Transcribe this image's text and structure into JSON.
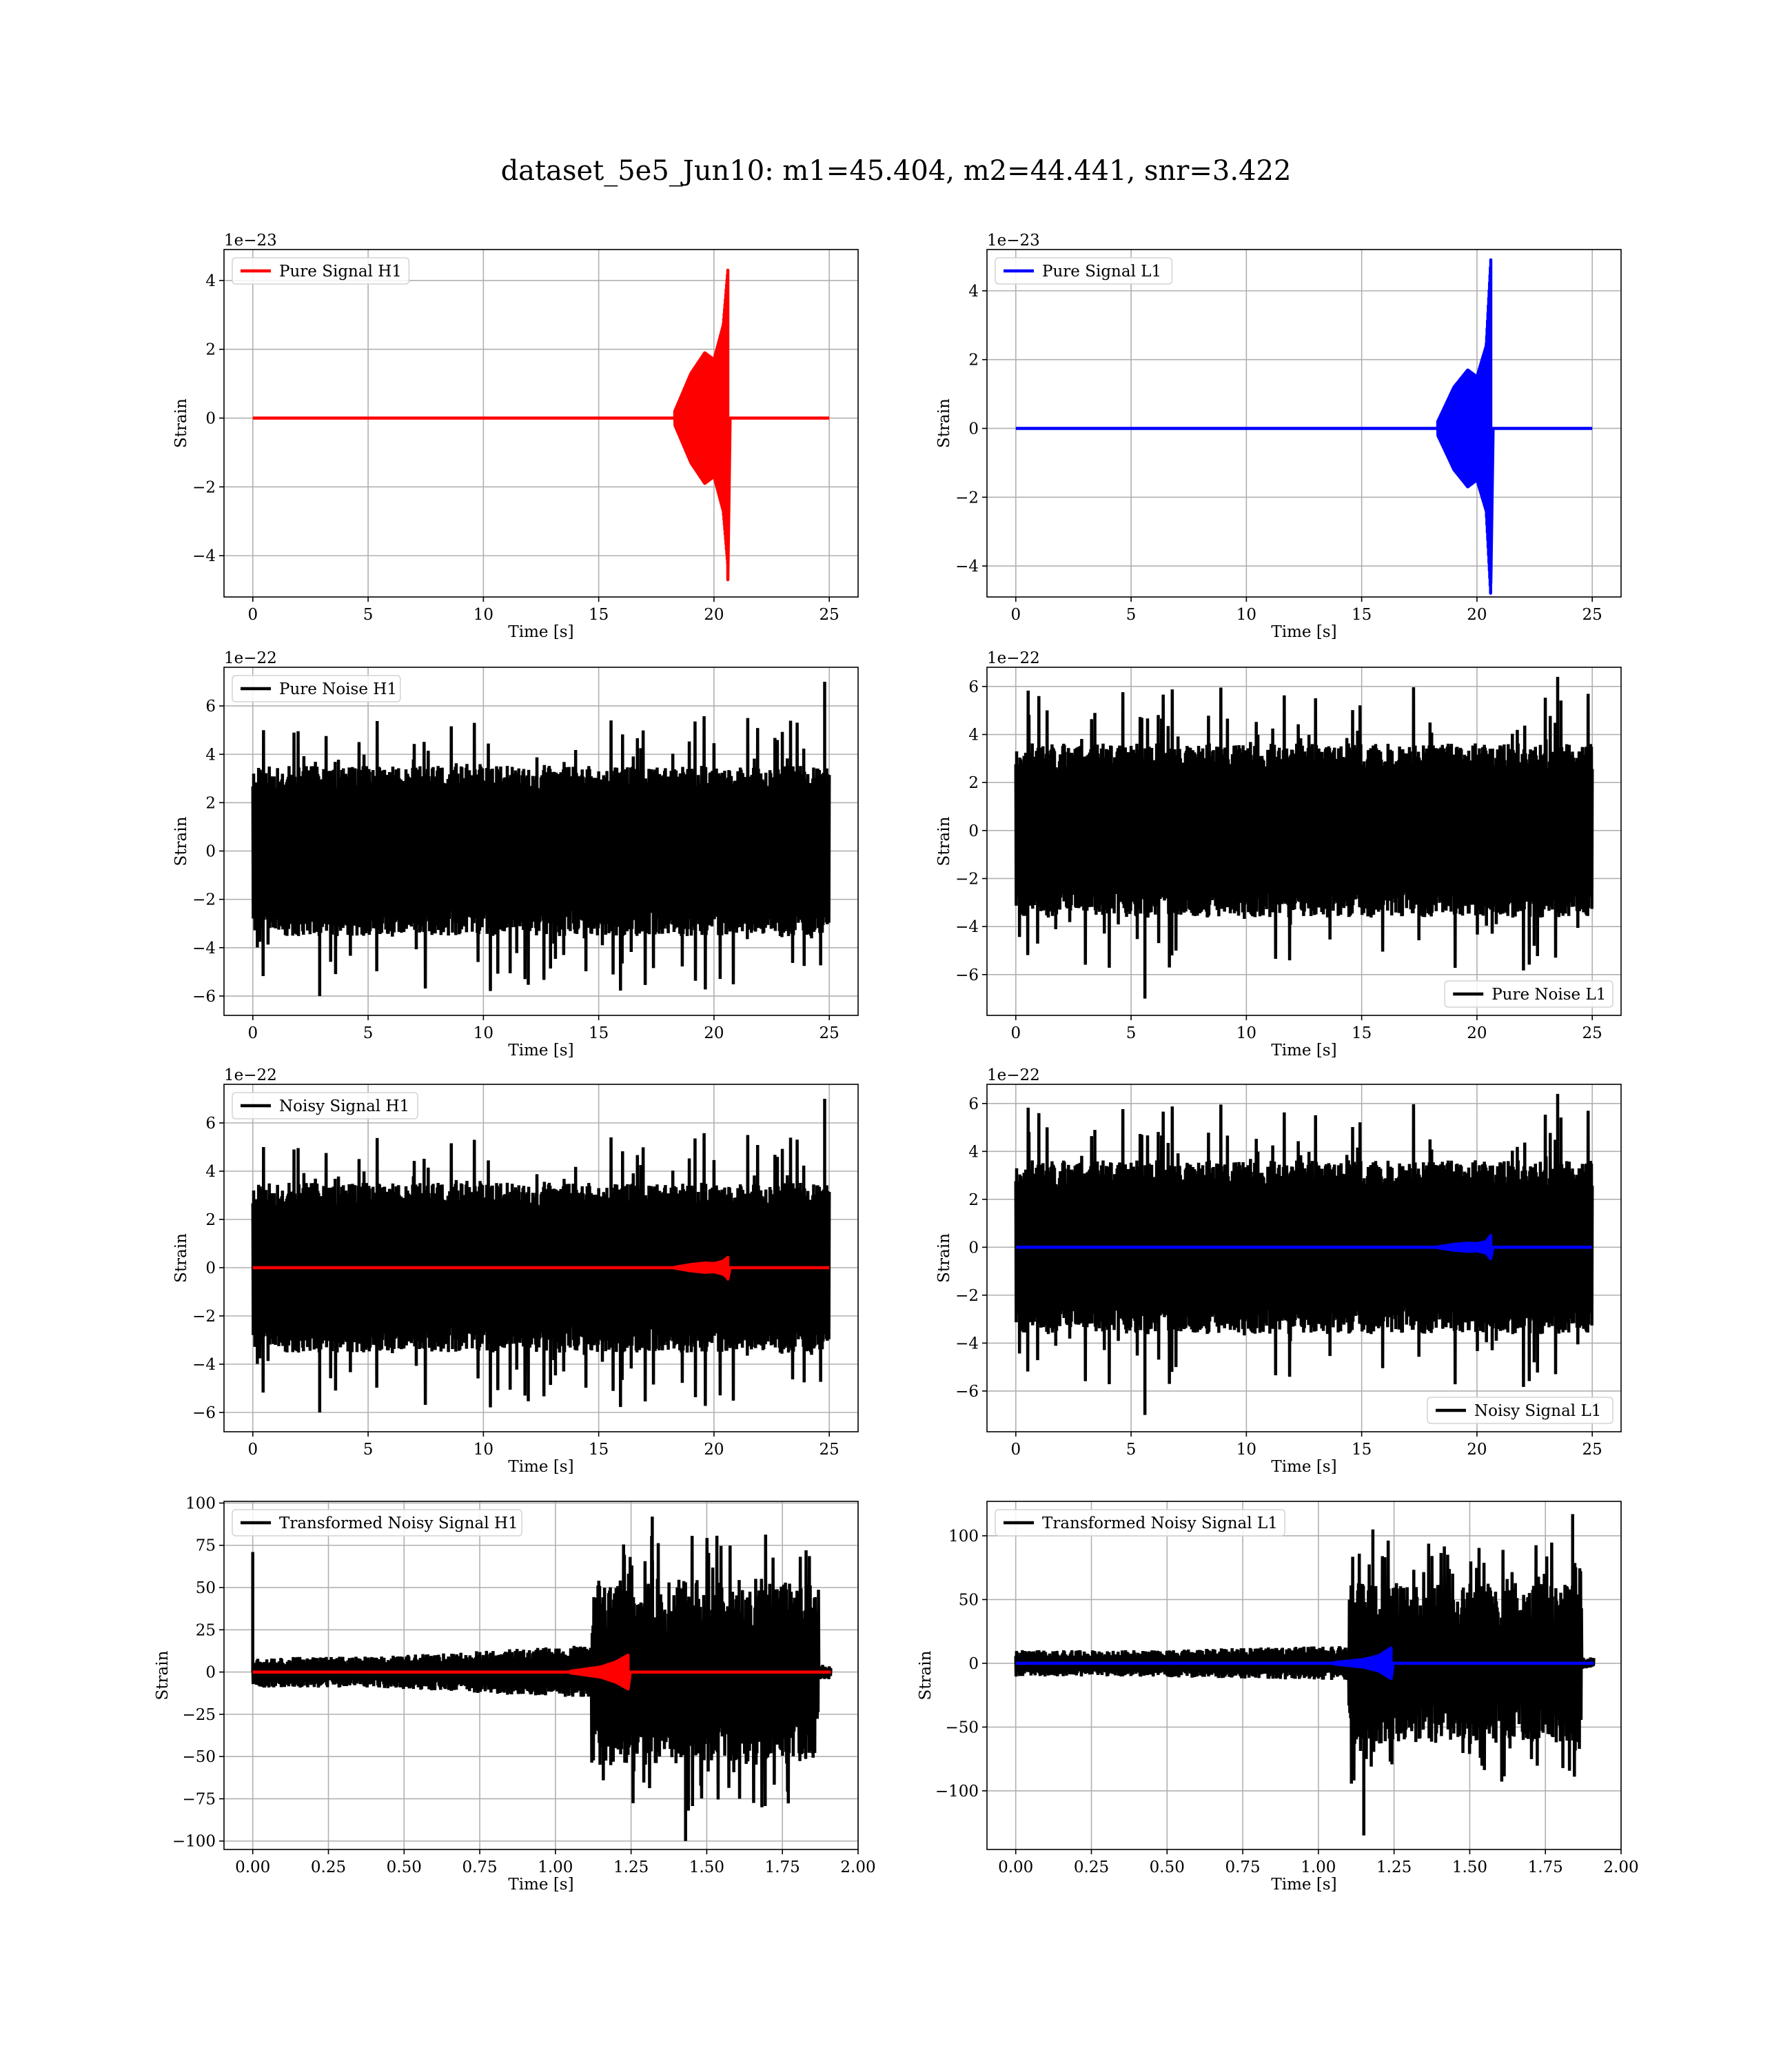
{
  "figure": {
    "title": "dataset_5e5_Jun10: m1=45.404, m2=44.441, snr=3.422"
  },
  "chart_data": [
    {
      "id": "pure-signal-h1",
      "type": "line",
      "xlabel": "Time [s]",
      "ylabel": "Strain",
      "offset_text": "1e−23",
      "xlim": [
        -1.25,
        26.25
      ],
      "ylim": [
        -5.2,
        4.9
      ],
      "xticks": [
        0,
        5,
        10,
        15,
        20,
        25
      ],
      "xtick_labels": [
        "0",
        "5",
        "10",
        "15",
        "20",
        "25"
      ],
      "yticks": [
        -4,
        -2,
        0,
        2,
        4
      ],
      "ytick_labels": [
        "−4",
        "−2",
        "0",
        "2",
        "4"
      ],
      "grid": true,
      "legend_position": "upper-left",
      "series": [
        {
          "name": "Pure Signal H1",
          "color": "#ff0000",
          "kind": "chirp",
          "x_start": 0,
          "x_end": 25,
          "merger": 20.6,
          "chirp_start": 18.3,
          "envelope": [
            [
              18.3,
              0.2
            ],
            [
              19.0,
              1.3
            ],
            [
              19.6,
              1.9
            ],
            [
              20.0,
              1.7
            ],
            [
              20.4,
              2.7
            ],
            [
              20.6,
              4.3
            ]
          ],
          "neg_peak": -4.7
        }
      ]
    },
    {
      "id": "pure-signal-l1",
      "type": "line",
      "xlabel": "Time [s]",
      "ylabel": "Strain",
      "offset_text": "1e−23",
      "xlim": [
        -1.25,
        26.25
      ],
      "ylim": [
        -4.9,
        5.2
      ],
      "xticks": [
        0,
        5,
        10,
        15,
        20,
        25
      ],
      "xtick_labels": [
        "0",
        "5",
        "10",
        "15",
        "20",
        "25"
      ],
      "yticks": [
        -4,
        -2,
        0,
        2,
        4
      ],
      "ytick_labels": [
        "−4",
        "−2",
        "0",
        "2",
        "4"
      ],
      "grid": true,
      "legend_position": "upper-left",
      "series": [
        {
          "name": "Pure Signal L1",
          "color": "#0000ff",
          "kind": "chirp",
          "x_start": 0,
          "x_end": 25,
          "merger": 20.6,
          "chirp_start": 18.3,
          "envelope": [
            [
              18.3,
              0.2
            ],
            [
              19.0,
              1.2
            ],
            [
              19.6,
              1.7
            ],
            [
              20.0,
              1.5
            ],
            [
              20.4,
              2.4
            ],
            [
              20.6,
              4.9
            ]
          ],
          "neg_peak": -4.5
        }
      ]
    },
    {
      "id": "pure-noise-h1",
      "type": "line",
      "xlabel": "Time [s]",
      "ylabel": "Strain",
      "offset_text": "1e−22",
      "xlim": [
        -1.25,
        26.25
      ],
      "ylim": [
        -6.8,
        7.6
      ],
      "xticks": [
        0,
        5,
        10,
        15,
        20,
        25
      ],
      "xtick_labels": [
        "0",
        "5",
        "10",
        "15",
        "20",
        "25"
      ],
      "yticks": [
        -6,
        -4,
        -2,
        0,
        2,
        4,
        6
      ],
      "ytick_labels": [
        "−6",
        "−4",
        "−2",
        "0",
        "2",
        "4",
        "6"
      ],
      "grid": true,
      "legend_position": "upper-left",
      "series": [
        {
          "name": "Pure Noise H1",
          "color": "#000000",
          "kind": "noise",
          "x_start": 0,
          "x_end": 25,
          "band": 3.2,
          "spike_max": 5.8,
          "max_point": [
            24.8,
            7.0
          ],
          "min_point": [
            2.9,
            -6.0
          ],
          "seed": 11
        }
      ]
    },
    {
      "id": "pure-noise-l1",
      "type": "line",
      "xlabel": "Time [s]",
      "ylabel": "Strain",
      "offset_text": "1e−22",
      "xlim": [
        -1.25,
        26.25
      ],
      "ylim": [
        -7.7,
        6.8
      ],
      "xticks": [
        0,
        5,
        10,
        15,
        20,
        25
      ],
      "xtick_labels": [
        "0",
        "5",
        "10",
        "15",
        "20",
        "25"
      ],
      "yticks": [
        -6,
        -4,
        -2,
        0,
        2,
        4,
        6
      ],
      "ytick_labels": [
        "−6",
        "−4",
        "−2",
        "0",
        "2",
        "4",
        "6"
      ],
      "grid": true,
      "legend_position": "lower-right",
      "series": [
        {
          "name": "Pure Noise L1",
          "color": "#000000",
          "kind": "noise",
          "x_start": 0,
          "x_end": 25,
          "band": 3.3,
          "spike_max": 6.0,
          "max_point": [
            23.5,
            6.4
          ],
          "min_point": [
            5.6,
            -7.0
          ],
          "seed": 23
        }
      ]
    },
    {
      "id": "noisy-signal-h1",
      "type": "line",
      "xlabel": "Time [s]",
      "ylabel": "Strain",
      "offset_text": "1e−22",
      "xlim": [
        -1.25,
        26.25
      ],
      "ylim": [
        -6.8,
        7.6
      ],
      "xticks": [
        0,
        5,
        10,
        15,
        20,
        25
      ],
      "xtick_labels": [
        "0",
        "5",
        "10",
        "15",
        "20",
        "25"
      ],
      "yticks": [
        -6,
        -4,
        -2,
        0,
        2,
        4,
        6
      ],
      "ytick_labels": [
        "−6",
        "−4",
        "−2",
        "0",
        "2",
        "4",
        "6"
      ],
      "grid": true,
      "legend_position": "upper-left",
      "series": [
        {
          "name": "Noisy Signal H1",
          "color": "#000000",
          "kind": "noise",
          "x_start": 0,
          "x_end": 25,
          "band": 3.2,
          "spike_max": 5.8,
          "max_point": [
            24.8,
            7.0
          ],
          "min_point": [
            2.9,
            -6.0
          ],
          "seed": 11
        },
        {
          "color": "#ff0000",
          "kind": "chirp",
          "x_start": 0,
          "x_end": 25,
          "merger": 20.6,
          "chirp_start": 18.3,
          "envelope": [
            [
              18.3,
              0.02
            ],
            [
              19.0,
              0.13
            ],
            [
              19.6,
              0.19
            ],
            [
              20.0,
              0.17
            ],
            [
              20.4,
              0.27
            ],
            [
              20.6,
              0.43
            ]
          ],
          "neg_peak": -0.47
        }
      ]
    },
    {
      "id": "noisy-signal-l1",
      "type": "line",
      "xlabel": "Time [s]",
      "ylabel": "Strain",
      "offset_text": "1e−22",
      "xlim": [
        -1.25,
        26.25
      ],
      "ylim": [
        -7.7,
        6.8
      ],
      "xticks": [
        0,
        5,
        10,
        15,
        20,
        25
      ],
      "xtick_labels": [
        "0",
        "5",
        "10",
        "15",
        "20",
        "25"
      ],
      "yticks": [
        -6,
        -4,
        -2,
        0,
        2,
        4,
        6
      ],
      "ytick_labels": [
        "−6",
        "−4",
        "−2",
        "0",
        "2",
        "4",
        "6"
      ],
      "grid": true,
      "legend_position": "lower-right",
      "series": [
        {
          "name": "Noisy Signal L1",
          "color": "#000000",
          "kind": "noise",
          "x_start": 0,
          "x_end": 25,
          "band": 3.3,
          "spike_max": 6.0,
          "max_point": [
            23.5,
            6.4
          ],
          "min_point": [
            5.6,
            -7.0
          ],
          "seed": 23
        },
        {
          "color": "#0000ff",
          "kind": "chirp",
          "x_start": 0,
          "x_end": 25,
          "merger": 20.6,
          "chirp_start": 18.3,
          "envelope": [
            [
              18.3,
              0.02
            ],
            [
              19.0,
              0.12
            ],
            [
              19.6,
              0.17
            ],
            [
              20.0,
              0.15
            ],
            [
              20.4,
              0.24
            ],
            [
              20.6,
              0.49
            ]
          ],
          "neg_peak": -0.45
        }
      ]
    },
    {
      "id": "transformed-noisy-signal-h1",
      "type": "line",
      "xlabel": "Time [s]",
      "ylabel": "Strain",
      "offset_text": "",
      "xlim": [
        -0.095,
        2.0
      ],
      "ylim": [
        -105,
        101
      ],
      "xticks": [
        0.0,
        0.25,
        0.5,
        0.75,
        1.0,
        1.25,
        1.5,
        1.75,
        2.0
      ],
      "xtick_labels": [
        "0.00",
        "0.25",
        "0.50",
        "0.75",
        "1.00",
        "1.25",
        "1.50",
        "1.75",
        "2.00"
      ],
      "yticks": [
        -100,
        -75,
        -50,
        -25,
        0,
        25,
        50,
        75,
        100
      ],
      "ytick_labels": [
        "−100",
        "−75",
        "−50",
        "−25",
        "0",
        "25",
        "50",
        "75",
        "100"
      ],
      "grid": true,
      "legend_position": "upper-left",
      "series": [
        {
          "name": "Transformed Noisy Signal H1",
          "color": "#000000",
          "kind": "whitened",
          "x_start": 0,
          "x_end": 1.91,
          "quiet_level": 8,
          "mid_level": 14,
          "loud_level": 48,
          "loud_start": 1.12,
          "loud_end": 1.87,
          "max_point": [
            0.0,
            71
          ],
          "peak_point": [
            1.32,
            92
          ],
          "min_point": [
            1.43,
            -100
          ],
          "seed": 37
        },
        {
          "color": "#ff0000",
          "kind": "chirp",
          "x_start": 0,
          "x_end": 1.91,
          "merger": 1.24,
          "chirp_start": 1.05,
          "envelope": [
            [
              1.05,
              0.5
            ],
            [
              1.15,
              3
            ],
            [
              1.2,
              6
            ],
            [
              1.24,
              10
            ]
          ],
          "neg_peak": -10
        }
      ]
    },
    {
      "id": "transformed-noisy-signal-l1",
      "type": "line",
      "xlabel": "Time [s]",
      "ylabel": "Strain",
      "offset_text": "",
      "xlim": [
        -0.095,
        2.0
      ],
      "ylim": [
        -146,
        127
      ],
      "xticks": [
        0.0,
        0.25,
        0.5,
        0.75,
        1.0,
        1.25,
        1.5,
        1.75,
        2.0
      ],
      "xtick_labels": [
        "0.00",
        "0.25",
        "0.50",
        "0.75",
        "1.00",
        "1.25",
        "1.50",
        "1.75",
        "2.00"
      ],
      "yticks": [
        -100,
        -50,
        0,
        50,
        100
      ],
      "ytick_labels": [
        "−100",
        "−50",
        "0",
        "50",
        "100"
      ],
      "grid": true,
      "legend_position": "upper-left",
      "series": [
        {
          "name": "Transformed Noisy Signal L1",
          "color": "#000000",
          "kind": "whitened",
          "x_start": 0,
          "x_end": 1.91,
          "quiet_level": 9,
          "mid_level": 12,
          "loud_level": 55,
          "loud_start": 1.1,
          "loud_end": 1.87,
          "max_point": [
            1.84,
            117
          ],
          "peak_point": [
            1.18,
            105
          ],
          "min_point": [
            1.15,
            -135
          ],
          "seed": 41
        },
        {
          "color": "#0000ff",
          "kind": "chirp",
          "x_start": 0,
          "x_end": 1.91,
          "merger": 1.24,
          "chirp_start": 1.05,
          "envelope": [
            [
              1.05,
              0.5
            ],
            [
              1.15,
              3
            ],
            [
              1.2,
              6
            ],
            [
              1.24,
              12
            ]
          ],
          "neg_peak": -12
        }
      ]
    }
  ]
}
